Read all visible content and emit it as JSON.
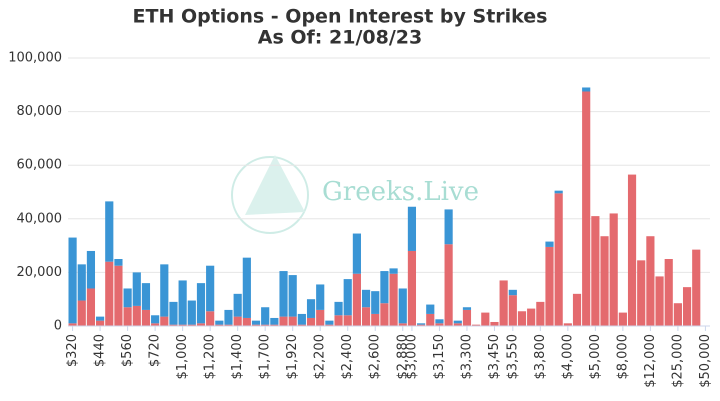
{
  "chart_data": {
    "type": "bar",
    "stacked": true,
    "title": "ETH Options - Open Interest by Strikes",
    "subtitle": "As Of: 21/08/23",
    "watermark": "Greeks.Live",
    "categories": [
      "$320",
      null,
      null,
      "$440",
      null,
      null,
      "$560",
      null,
      null,
      "$720",
      null,
      null,
      "$1,000",
      null,
      null,
      "$1,200",
      null,
      null,
      "$1,400",
      null,
      null,
      "$1,700",
      null,
      null,
      "$1,920",
      null,
      null,
      "$2,200",
      null,
      null,
      "$2,400",
      null,
      null,
      "$2,600",
      null,
      null,
      "$2,880",
      "$3,000",
      null,
      null,
      "$3,150",
      null,
      null,
      "$3,300",
      null,
      null,
      "$3,450",
      null,
      "$3,550",
      null,
      null,
      "$3,800",
      null,
      null,
      "$4,000",
      null,
      null,
      "$5,000",
      null,
      null,
      "$8,000",
      null,
      null,
      "$12,000",
      null,
      null,
      "$25,000",
      null,
      null,
      "$50,000"
    ],
    "series": [
      {
        "color": "#e46a6e",
        "values": [
          1000,
          9500,
          14000,
          2000,
          24000,
          22500,
          7000,
          7500,
          6000,
          1000,
          3500,
          500,
          500,
          500,
          1000,
          5500,
          500,
          500,
          3500,
          3000,
          500,
          500,
          500,
          3500,
          3500,
          500,
          3000,
          6000,
          500,
          4000,
          4000,
          19500,
          7000,
          4500,
          8500,
          19500,
          1000,
          28000,
          500,
          4500,
          1000,
          30500,
          1000,
          6000,
          500,
          5000,
          1500,
          17000,
          11500,
          5500,
          6500,
          9000,
          29500,
          49500,
          1000,
          12000,
          87500,
          41000,
          33500,
          42000,
          5000,
          56500,
          24500,
          33500,
          18500,
          25000,
          8500,
          14500,
          28500,
          0
        ]
      },
      {
        "color": "#3a95d5",
        "values": [
          32000,
          13500,
          14000,
          1500,
          22500,
          2500,
          7000,
          12500,
          10000,
          3000,
          19500,
          8500,
          16500,
          9000,
          15000,
          17000,
          1500,
          5500,
          8500,
          22500,
          1500,
          6500,
          2500,
          17000,
          15500,
          4000,
          7000,
          9500,
          1500,
          5000,
          13500,
          15000,
          6500,
          8500,
          12000,
          2000,
          13000,
          16500,
          500,
          3500,
          1500,
          13000,
          1000,
          1000,
          0,
          0,
          0,
          0,
          2000,
          0,
          0,
          0,
          2000,
          1000,
          0,
          0,
          1500,
          0,
          0,
          0,
          0,
          0,
          0,
          0,
          0,
          0,
          0,
          0,
          0,
          0
        ]
      }
    ],
    "ylim": [
      0,
      100000
    ],
    "yticks": [
      0,
      {
        "value": 20000,
        "label": "20,000"
      },
      {
        "value": 40000,
        "label": "40,000"
      },
      {
        "value": 60000,
        "label": "60,000"
      },
      {
        "value": 80000,
        "label": "80,000"
      },
      {
        "value": 100000,
        "label": "100,000"
      }
    ],
    "grid": true
  }
}
